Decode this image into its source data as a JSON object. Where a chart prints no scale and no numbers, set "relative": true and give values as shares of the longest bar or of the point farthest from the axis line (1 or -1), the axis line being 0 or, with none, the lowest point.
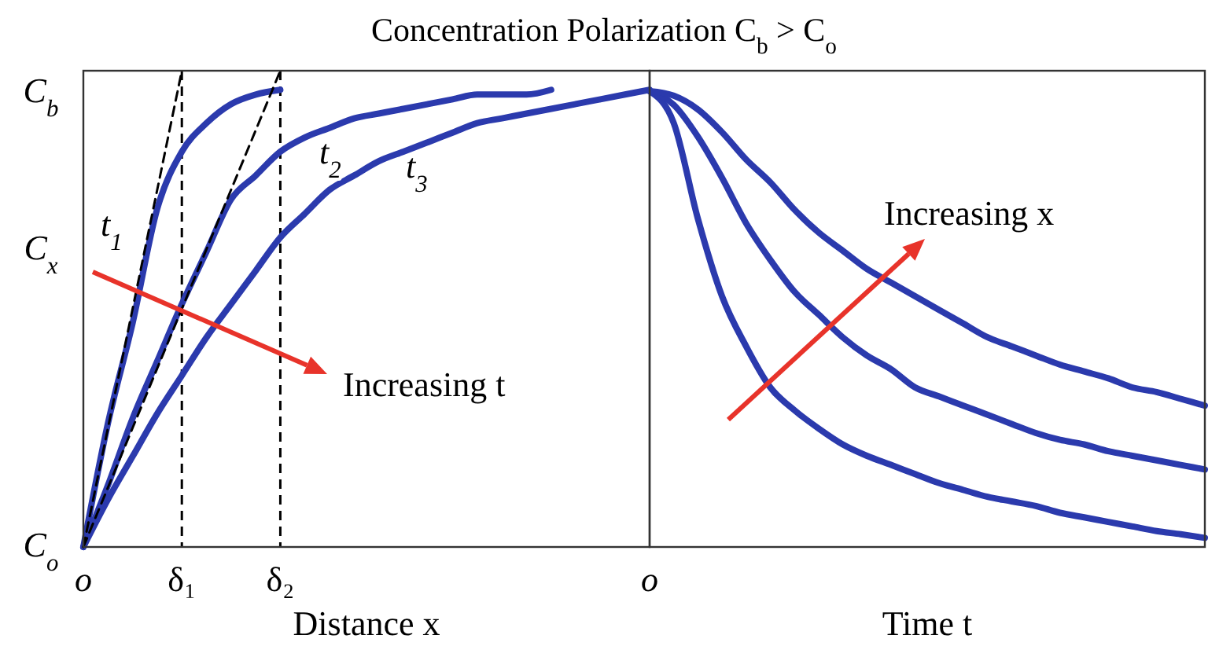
{
  "chart_data": [
    {
      "type": "line",
      "relative": true,
      "title": "Concentration Polarization C$_{b}$ > C$_{o}$",
      "xlabel": "Distance x",
      "categories": [
        "o",
        null,
        null,
        null,
        "δ₁",
        null,
        null,
        null,
        "δ₂",
        null,
        null,
        null,
        null,
        null,
        null,
        null,
        null,
        null,
        null,
        null,
        null,
        null,
        null,
        null
      ],
      "ref_lines": [
        {
          "axis": "x",
          "value": "δ₁",
          "color": "#000000",
          "line_style": "dashed"
        },
        {
          "axis": "x",
          "value": "δ₂",
          "color": "#000000",
          "line_style": "dashed"
        }
      ],
      "annotations": [
        "Increasing t",
        "C$_{b}$",
        "C$_{x}$",
        "C$_{o}$"
      ],
      "series": [
        {
          "name": "t$_{1}$",
          "color": "#2b3aad",
          "values": [
            0,
            0.26,
            0.47,
            0.71,
            0.83,
            0.89,
            0.93,
            0.95,
            0.96,
            null,
            null,
            null,
            null,
            null,
            null,
            null,
            null,
            null,
            null,
            null,
            null,
            null,
            null,
            null
          ]
        },
        {
          "name": "t$_{2}$",
          "color": "#2b3aad",
          "values": [
            0,
            0.13,
            0.27,
            0.39,
            0.51,
            0.62,
            0.73,
            0.78,
            0.83,
            0.86,
            0.88,
            0.9,
            0.91,
            0.92,
            0.93,
            0.94,
            0.95,
            0.95,
            0.95,
            0.96,
            null,
            null,
            null,
            null
          ]
        },
        {
          "name": "t$_{3}$",
          "color": "#2b3aad",
          "values": [
            0,
            0.1,
            0.19,
            0.28,
            0.36,
            0.44,
            0.51,
            0.58,
            0.65,
            0.7,
            0.75,
            0.78,
            0.81,
            0.83,
            0.85,
            0.87,
            0.89,
            0.9,
            0.91,
            0.92,
            0.93,
            0.94,
            0.95,
            0.96
          ]
        },
        {
          "type": "line",
          "color": "#000000",
          "line_style": "dashed",
          "values": [
            0,
            0.25,
            0.5,
            0.75,
            1,
            null,
            null,
            null,
            null,
            null,
            null,
            null,
            null,
            null,
            null,
            null,
            null,
            null,
            null,
            null,
            null,
            null,
            null,
            null
          ]
        },
        {
          "type": "line",
          "color": "#000000",
          "line_style": "dashed",
          "values": [
            0,
            0.125,
            0.25,
            0.375,
            0.5,
            0.625,
            0.75,
            0.875,
            1,
            null,
            null,
            null,
            null,
            null,
            null,
            null,
            null,
            null,
            null,
            null,
            null,
            null,
            null,
            null
          ]
        }
      ]
    },
    {
      "type": "line",
      "relative": true,
      "xlabel": "Time t",
      "categories": [
        null,
        null,
        null,
        null,
        null,
        null,
        null,
        null,
        null,
        null,
        null,
        null,
        null,
        null,
        null,
        null,
        null,
        null,
        null,
        null,
        null,
        null,
        null,
        null
      ],
      "annotations": [
        "Increasing x",
        "o"
      ],
      "series": [
        {
          "color": "#2b3aad",
          "values": [
            1,
            0.93,
            0.72,
            0.55,
            0.44,
            0.35,
            0.3,
            0.26,
            0.225,
            0.2,
            0.18,
            0.16,
            0.14,
            0.125,
            0.11,
            0.1,
            0.09,
            0.075,
            0.065,
            0.055,
            0.045,
            0.035,
            0.028,
            0.02
          ]
        },
        {
          "color": "#2b3aad",
          "values": [
            1,
            0.97,
            0.9,
            0.81,
            0.71,
            0.63,
            0.56,
            0.51,
            0.46,
            0.42,
            0.39,
            0.35,
            0.33,
            0.31,
            0.29,
            0.27,
            0.25,
            0.235,
            0.225,
            0.21,
            0.2,
            0.19,
            0.18,
            0.17
          ]
        },
        {
          "color": "#2b3aad",
          "values": [
            1,
            0.99,
            0.96,
            0.91,
            0.85,
            0.8,
            0.74,
            0.69,
            0.65,
            0.61,
            0.58,
            0.55,
            0.52,
            0.49,
            0.46,
            0.44,
            0.42,
            0.4,
            0.385,
            0.37,
            0.35,
            0.34,
            0.325,
            0.31
          ]
        }
      ]
    }
  ]
}
